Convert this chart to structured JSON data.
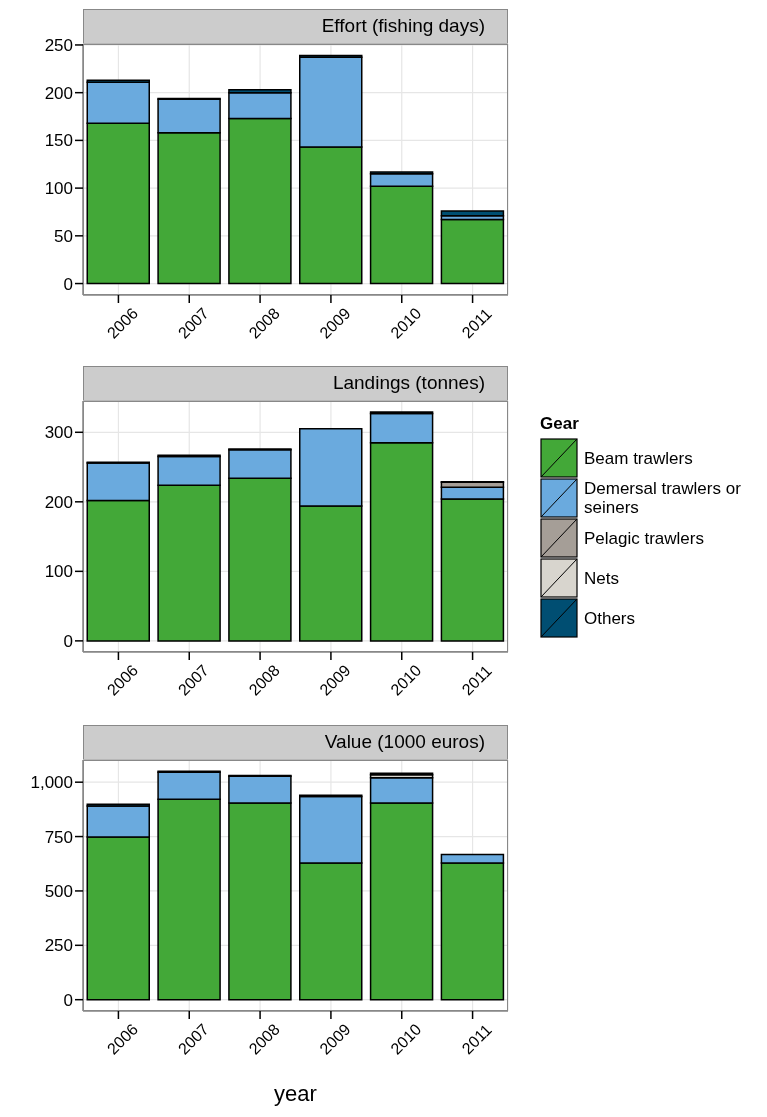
{
  "chart_data": [
    {
      "type": "bar",
      "title": "Effort (fishing days)",
      "categories": [
        "2006",
        "2007",
        "2008",
        "2009",
        "2010",
        "2011"
      ],
      "stacked": true,
      "grid": true,
      "legend": false,
      "ylim": [
        -12,
        251
      ],
      "yticks": [
        0,
        50,
        100,
        150,
        200,
        250
      ],
      "series": [
        {
          "color": "#43a838",
          "values": [
            168,
            158,
            173,
            143,
            102,
            67
          ]
        },
        {
          "color": "#6aaade",
          "values": [
            43,
            35,
            27,
            94,
            13,
            4
          ]
        },
        {
          "color": "#004e72",
          "values": [
            2,
            1,
            3,
            2,
            2,
            5
          ]
        }
      ]
    },
    {
      "type": "bar",
      "title": "Landings (tonnes)",
      "categories": [
        "2006",
        "2007",
        "2008",
        "2009",
        "2010",
        "2011"
      ],
      "stacked": true,
      "grid": true,
      "legend": "right",
      "legend_title": "Gear",
      "ylim": [
        -16,
        345
      ],
      "yticks": [
        0,
        100,
        200,
        300
      ],
      "series": [
        {
          "name": "Beam trawlers",
          "color": "#43a838",
          "values": [
            202,
            224,
            234,
            194,
            285,
            204
          ]
        },
        {
          "name": "Demersal trawlers or seiners",
          "color": "#6aaade",
          "values": [
            54,
            41,
            41,
            111,
            42,
            17
          ]
        },
        {
          "name": "Pelagic trawlers",
          "color": "#a59e97",
          "values": [
            0,
            0,
            0,
            0,
            0,
            7
          ]
        },
        {
          "name": "Nets",
          "color": "#d8d5ce",
          "values": [
            0,
            0,
            0,
            0,
            0,
            0
          ]
        },
        {
          "name": "Others",
          "color": "#004e72",
          "values": [
            1,
            2,
            1,
            0,
            2,
            1
          ]
        }
      ]
    },
    {
      "type": "bar",
      "title": "Value (1000 euros)",
      "xlabel": "year",
      "categories": [
        "2006",
        "2007",
        "2008",
        "2009",
        "2010",
        "2011"
      ],
      "stacked": true,
      "grid": true,
      "legend": false,
      "ylim": [
        -52,
        1102
      ],
      "yticks": [
        0,
        250,
        500,
        750,
        {
          "value": 1000,
          "label": "1,000"
        }
      ],
      "series": [
        {
          "color": "#43a838",
          "values": [
            748,
            921,
            904,
            629,
            904,
            629
          ]
        },
        {
          "color": "#6aaade",
          "values": [
            142,
            125,
            123,
            305,
            116,
            38
          ]
        },
        {
          "color": "#d8d5ce",
          "values": [
            0,
            0,
            0,
            0,
            14,
            0
          ]
        },
        {
          "color": "#004e72",
          "values": [
            8,
            4,
            4,
            6,
            7,
            0
          ]
        }
      ]
    }
  ]
}
